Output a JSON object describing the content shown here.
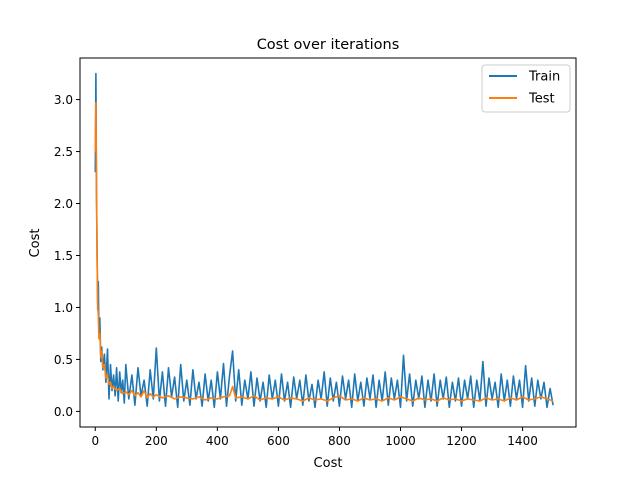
{
  "chart_data": {
    "type": "line",
    "title": "Cost over iterations",
    "xlabel": "Cost",
    "ylabel": "Cost",
    "xlim": [
      -50,
      1575
    ],
    "ylim": [
      -0.15,
      3.4
    ],
    "xticks": [
      0,
      200,
      400,
      600,
      800,
      1000,
      1200,
      1400
    ],
    "yticks": [
      0.0,
      0.5,
      1.0,
      1.5,
      2.0,
      2.5,
      3.0
    ],
    "xtick_labels": [
      "0",
      "200",
      "400",
      "600",
      "800",
      "1000",
      "1200",
      "1400"
    ],
    "ytick_labels": [
      "0.0",
      "0.5",
      "1.0",
      "1.5",
      "2.0",
      "2.5",
      "3.0"
    ],
    "grid": false,
    "legend_position": "top-right",
    "series": [
      {
        "name": "Train",
        "color": "#1f77b4",
        "x": [
          0,
          2,
          4,
          6,
          8,
          10,
          12,
          15,
          18,
          21,
          25,
          30,
          35,
          40,
          45,
          50,
          55,
          60,
          65,
          70,
          75,
          80,
          85,
          90,
          95,
          100,
          110,
          120,
          130,
          140,
          150,
          160,
          170,
          180,
          190,
          200,
          210,
          220,
          230,
          240,
          250,
          260,
          270,
          280,
          290,
          300,
          310,
          320,
          330,
          340,
          350,
          360,
          370,
          380,
          390,
          400,
          410,
          420,
          430,
          440,
          450,
          460,
          470,
          480,
          490,
          500,
          510,
          520,
          530,
          540,
          550,
          560,
          570,
          580,
          590,
          600,
          610,
          620,
          630,
          640,
          650,
          660,
          670,
          680,
          690,
          700,
          710,
          720,
          730,
          740,
          750,
          760,
          770,
          780,
          790,
          800,
          810,
          820,
          830,
          840,
          850,
          860,
          870,
          880,
          890,
          900,
          910,
          920,
          930,
          940,
          950,
          960,
          970,
          980,
          990,
          1000,
          1010,
          1020,
          1030,
          1040,
          1050,
          1060,
          1070,
          1080,
          1090,
          1100,
          1110,
          1120,
          1130,
          1140,
          1150,
          1160,
          1170,
          1180,
          1190,
          1200,
          1210,
          1220,
          1230,
          1240,
          1250,
          1260,
          1270,
          1280,
          1290,
          1300,
          1310,
          1320,
          1330,
          1340,
          1350,
          1360,
          1370,
          1380,
          1390,
          1400,
          1410,
          1420,
          1430,
          1440,
          1450,
          1460,
          1470,
          1480,
          1490,
          1500
        ],
        "y": [
          2.3,
          3.25,
          2.1,
          1.55,
          0.98,
          1.25,
          0.75,
          0.9,
          0.48,
          0.62,
          0.4,
          0.55,
          0.28,
          0.6,
          0.12,
          0.45,
          0.2,
          0.35,
          0.15,
          0.42,
          0.1,
          0.38,
          0.18,
          0.3,
          0.08,
          0.45,
          0.12,
          0.35,
          0.06,
          0.42,
          0.15,
          0.3,
          0.05,
          0.4,
          0.12,
          0.61,
          0.1,
          0.38,
          0.05,
          0.42,
          0.14,
          0.33,
          0.04,
          0.45,
          0.1,
          0.3,
          0.06,
          0.4,
          0.12,
          0.28,
          0.05,
          0.36,
          0.1,
          0.3,
          0.04,
          0.38,
          0.12,
          0.46,
          0.05,
          0.35,
          0.58,
          0.1,
          0.4,
          0.06,
          0.3,
          0.12,
          0.38,
          0.05,
          0.32,
          0.1,
          0.28,
          0.04,
          0.35,
          0.12,
          0.3,
          0.05,
          0.36,
          0.1,
          0.28,
          0.04,
          0.33,
          0.12,
          0.3,
          0.06,
          0.35,
          0.1,
          0.26,
          0.04,
          0.3,
          0.12,
          0.38,
          0.05,
          0.32,
          0.1,
          0.28,
          0.05,
          0.34,
          0.12,
          0.3,
          0.04,
          0.36,
          0.1,
          0.28,
          0.05,
          0.32,
          0.12,
          0.35,
          0.04,
          0.3,
          0.1,
          0.38,
          0.06,
          0.32,
          0.12,
          0.3,
          0.04,
          0.54,
          0.1,
          0.36,
          0.05,
          0.3,
          0.12,
          0.34,
          0.04,
          0.3,
          0.1,
          0.36,
          0.05,
          0.3,
          0.12,
          0.33,
          0.04,
          0.28,
          0.1,
          0.32,
          0.05,
          0.3,
          0.12,
          0.34,
          0.04,
          0.3,
          0.1,
          0.48,
          0.05,
          0.32,
          0.12,
          0.28,
          0.04,
          0.36,
          0.1,
          0.3,
          0.05,
          0.34,
          0.12,
          0.3,
          0.04,
          0.44,
          0.1,
          0.32,
          0.05,
          0.3,
          0.12,
          0.28,
          0.04,
          0.22,
          0.06
        ]
      },
      {
        "name": "Test",
        "color": "#ff7f0e",
        "x": [
          0,
          2,
          4,
          6,
          8,
          10,
          12,
          15,
          18,
          21,
          25,
          30,
          35,
          40,
          45,
          50,
          55,
          60,
          70,
          80,
          90,
          100,
          110,
          120,
          130,
          140,
          150,
          160,
          170,
          180,
          190,
          200,
          220,
          240,
          260,
          280,
          300,
          320,
          340,
          360,
          380,
          400,
          420,
          440,
          450,
          460,
          480,
          500,
          520,
          540,
          560,
          580,
          600,
          620,
          640,
          660,
          680,
          700,
          720,
          740,
          760,
          780,
          800,
          820,
          840,
          860,
          880,
          900,
          920,
          940,
          960,
          980,
          1000,
          1020,
          1040,
          1060,
          1080,
          1100,
          1120,
          1140,
          1160,
          1180,
          1200,
          1220,
          1240,
          1260,
          1280,
          1300,
          1320,
          1340,
          1360,
          1380,
          1400,
          1420,
          1440,
          1460,
          1480,
          1500
        ],
        "y": [
          2.5,
          2.97,
          2.15,
          1.45,
          1.05,
          0.92,
          0.7,
          0.75,
          0.52,
          0.58,
          0.42,
          0.45,
          0.32,
          0.35,
          0.26,
          0.28,
          0.22,
          0.24,
          0.2,
          0.22,
          0.17,
          0.19,
          0.16,
          0.2,
          0.15,
          0.18,
          0.14,
          0.2,
          0.13,
          0.17,
          0.14,
          0.16,
          0.13,
          0.15,
          0.12,
          0.14,
          0.13,
          0.12,
          0.14,
          0.11,
          0.13,
          0.12,
          0.14,
          0.15,
          0.24,
          0.13,
          0.14,
          0.12,
          0.15,
          0.11,
          0.13,
          0.12,
          0.14,
          0.11,
          0.13,
          0.12,
          0.1,
          0.13,
          0.11,
          0.12,
          0.1,
          0.13,
          0.15,
          0.11,
          0.12,
          0.1,
          0.13,
          0.11,
          0.12,
          0.1,
          0.13,
          0.11,
          0.14,
          0.12,
          0.1,
          0.13,
          0.11,
          0.12,
          0.1,
          0.13,
          0.11,
          0.12,
          0.1,
          0.12,
          0.11,
          0.1,
          0.13,
          0.11,
          0.12,
          0.1,
          0.13,
          0.11,
          0.14,
          0.11,
          0.12,
          0.14,
          0.12,
          0.1
        ]
      }
    ]
  }
}
